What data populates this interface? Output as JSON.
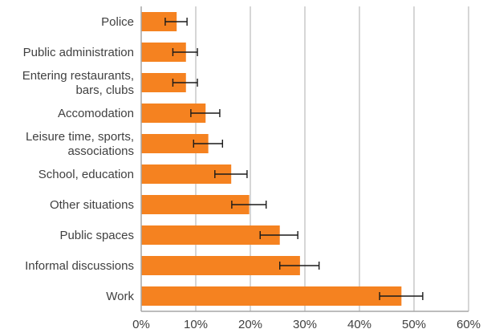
{
  "colors": {
    "bar": "#f58220",
    "grid": "#c8c8c8",
    "axis": "#a6a6a6",
    "errorbar": "#1a1a1a",
    "text": "#404040"
  },
  "chart_data": {
    "type": "bar",
    "orientation": "horizontal",
    "title": "",
    "xlabel": "",
    "ylabel": "",
    "xlim": [
      0,
      60
    ],
    "x_ticks": [
      "0%",
      "10%",
      "20%",
      "30%",
      "40%",
      "50%",
      "60%"
    ],
    "grid": true,
    "categories": [
      [
        "Police"
      ],
      [
        "Public administration"
      ],
      [
        "Entering restaurants,",
        "bars, clubs"
      ],
      [
        "Accomodation"
      ],
      [
        "Leisure time, sports,",
        "associations"
      ],
      [
        "School, education"
      ],
      [
        "Other situations"
      ],
      [
        "Public spaces"
      ],
      [
        "Informal discussions"
      ],
      [
        "Work"
      ]
    ],
    "values": [
      6.5,
      8.2,
      8.2,
      11.8,
      12.3,
      16.5,
      19.8,
      25.4,
      29.1,
      47.7
    ],
    "error_low": [
      4.4,
      5.8,
      5.8,
      9.1,
      9.6,
      13.5,
      16.6,
      21.8,
      25.4,
      43.7
    ],
    "error_high": [
      8.4,
      10.3,
      10.3,
      14.4,
      14.9,
      19.4,
      22.9,
      28.7,
      32.6,
      51.6
    ]
  }
}
